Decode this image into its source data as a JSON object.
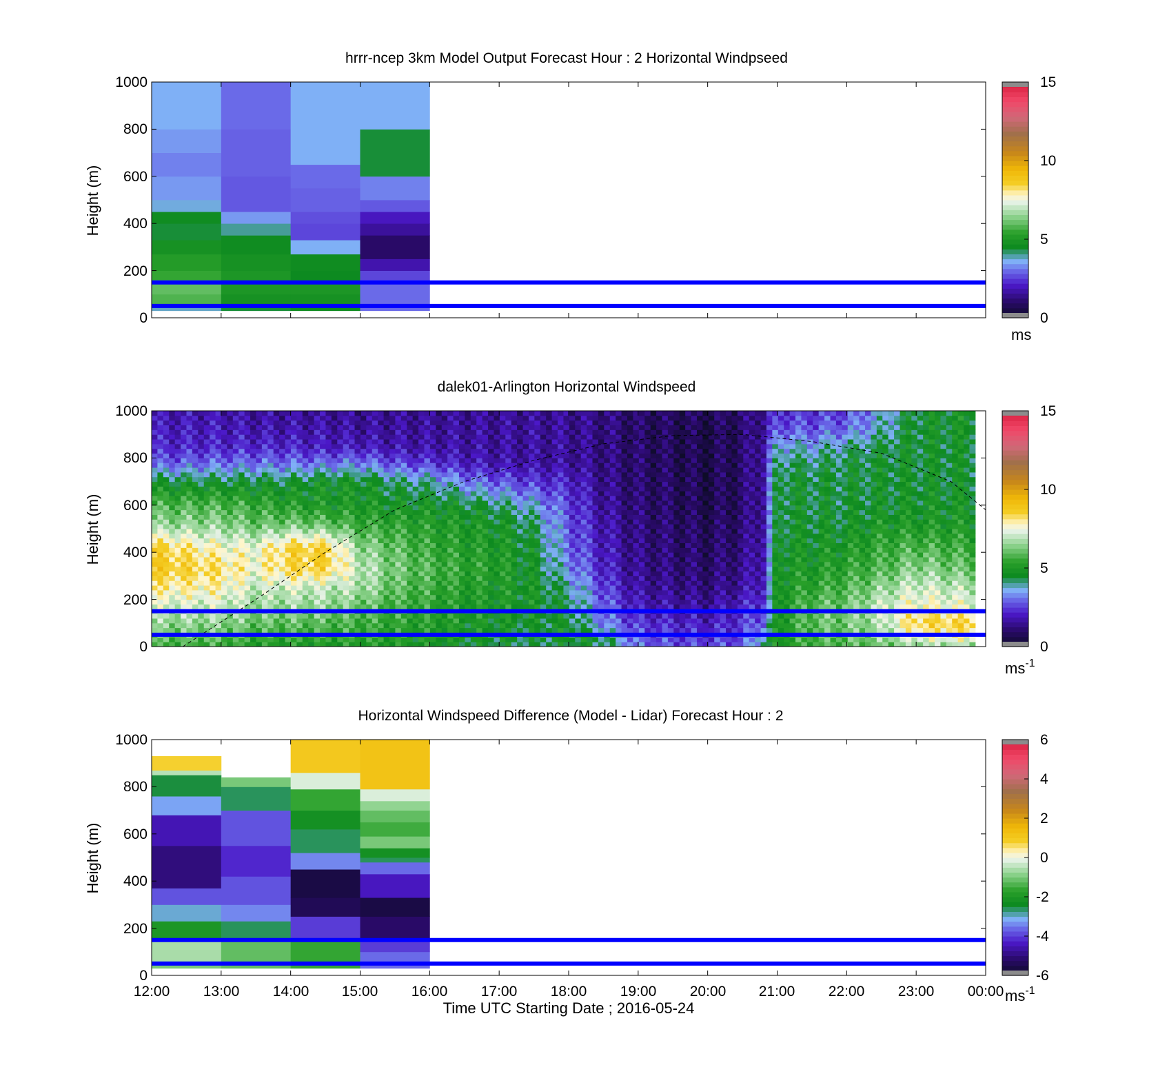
{
  "chart_data": [
    {
      "type": "heatmap",
      "title": "hrrr-ncep 3km Model Output   Forecast Hour : 2 Horizontal Windpseed",
      "ylabel": "Height (m)",
      "xlabel": "",
      "y_ticks": [
        "0",
        "200",
        "400",
        "600",
        "800",
        "1000"
      ],
      "ylim": [
        0,
        1000
      ],
      "x_range_hours": [
        12,
        24
      ],
      "x_ticks": [],
      "colorbar": {
        "ticks": [
          "0",
          "5",
          "10",
          "15"
        ],
        "range": [
          0,
          15
        ],
        "unit": "ms",
        "unit_sup": ""
      },
      "data_extent_hours": [
        12,
        16
      ],
      "reference_lines_m": [
        50,
        150
      ],
      "reference_line_color": "#0000ff",
      "columns": [
        {
          "t0": 12,
          "t1": 13,
          "bands": [
            [
              30,
              50,
              3.8
            ],
            [
              50,
              100,
              5.8
            ],
            [
              100,
              160,
              6.0
            ],
            [
              160,
              200,
              5.5
            ],
            [
              200,
              270,
              5.2
            ],
            [
              270,
              330,
              4.8
            ],
            [
              330,
              400,
              4.4
            ],
            [
              400,
              450,
              4.6
            ],
            [
              450,
              500,
              3.7
            ],
            [
              500,
              600,
              3.4
            ],
            [
              600,
              700,
              3.2
            ],
            [
              700,
              800,
              3.4
            ],
            [
              800,
              1000,
              3.6
            ]
          ]
        },
        {
          "t0": 13,
          "t1": 14,
          "bands": [
            [
              30,
              50,
              4.4
            ],
            [
              50,
              100,
              4.8
            ],
            [
              100,
              160,
              5.0
            ],
            [
              160,
              200,
              5.0
            ],
            [
              200,
              270,
              4.8
            ],
            [
              270,
              350,
              4.6
            ],
            [
              350,
              400,
              4.0
            ],
            [
              400,
              450,
              3.4
            ],
            [
              450,
              600,
              2.8
            ],
            [
              600,
              800,
              2.9
            ],
            [
              800,
              1000,
              3.0
            ]
          ]
        },
        {
          "t0": 14,
          "t1": 15,
          "bands": [
            [
              30,
              50,
              4.6
            ],
            [
              50,
              100,
              4.8
            ],
            [
              100,
              160,
              5.0
            ],
            [
              160,
              200,
              4.5
            ],
            [
              200,
              270,
              4.6
            ],
            [
              270,
              330,
              3.6
            ],
            [
              330,
              400,
              2.6
            ],
            [
              400,
              450,
              2.7
            ],
            [
              450,
              550,
              2.9
            ],
            [
              550,
              650,
              3.0
            ],
            [
              650,
              1000,
              3.6
            ]
          ]
        },
        {
          "t0": 15,
          "t1": 16,
          "bands": [
            [
              30,
              160,
              3.0
            ],
            [
              160,
              200,
              2.6
            ],
            [
              200,
              250,
              1.8
            ],
            [
              250,
              350,
              1.0
            ],
            [
              350,
              400,
              1.6
            ],
            [
              400,
              450,
              2.0
            ],
            [
              450,
              500,
              2.8
            ],
            [
              500,
              600,
              3.2
            ],
            [
              600,
              800,
              4.4
            ],
            [
              800,
              1000,
              3.6
            ]
          ]
        }
      ]
    },
    {
      "type": "heatmap",
      "title": "dalek01-Arlington  Horizontal Windspeed",
      "ylabel": "Height (m)",
      "xlabel": "",
      "y_ticks": [
        "0",
        "200",
        "400",
        "600",
        "800",
        "1000"
      ],
      "ylim": [
        0,
        1000
      ],
      "x_range_hours": [
        12,
        24
      ],
      "x_ticks": [],
      "colorbar": {
        "ticks": [
          "0",
          "5",
          "10",
          "15"
        ],
        "range": [
          0,
          15
        ],
        "unit": "ms",
        "unit_sup": "-1"
      },
      "data_extent_hours": [
        12,
        23.85
      ],
      "reference_lines_m": [
        50,
        150
      ],
      "reference_line_color": "#0000ff",
      "time_anchors_hours": [
        12.0,
        13.0,
        13.5,
        14.0,
        14.5,
        15.0,
        15.5,
        16.0,
        16.5,
        17.0,
        17.5,
        18.0,
        18.5,
        19.0,
        19.5,
        20.0,
        20.5,
        20.8,
        21.0,
        21.5,
        22.0,
        22.5,
        23.0,
        23.85
      ],
      "height_anchors_m": [
        0,
        40,
        100,
        160,
        250,
        330,
        420,
        520,
        600,
        700,
        780,
        850,
        920,
        1000
      ],
      "speed_grid": [
        [
          5.5,
          6.0,
          6.5,
          7.0,
          8.0,
          8.8,
          8.6,
          6.5,
          5.8,
          4.5,
          2.8,
          2.2,
          2.0,
          1.8
        ],
        [
          5.5,
          6.0,
          6.5,
          7.0,
          7.8,
          8.2,
          7.6,
          6.5,
          5.8,
          4.5,
          3.0,
          2.2,
          2.0,
          1.8
        ],
        [
          5.0,
          5.5,
          6.0,
          6.5,
          7.0,
          7.6,
          7.5,
          6.0,
          5.5,
          4.5,
          3.0,
          2.2,
          1.8,
          1.6
        ],
        [
          5.0,
          5.5,
          6.0,
          6.5,
          7.2,
          8.4,
          8.5,
          6.2,
          5.2,
          4.5,
          3.0,
          2.2,
          1.8,
          1.6
        ],
        [
          4.8,
          5.5,
          5.8,
          6.5,
          7.0,
          8.5,
          8.6,
          6.0,
          5.0,
          4.8,
          3.0,
          2.0,
          1.8,
          1.5
        ],
        [
          5.0,
          5.5,
          5.6,
          6.0,
          6.8,
          7.0,
          6.5,
          5.5,
          5.0,
          4.8,
          3.2,
          2.0,
          1.6,
          1.5
        ],
        [
          5.0,
          5.2,
          5.4,
          5.6,
          6.0,
          6.2,
          6.0,
          5.4,
          4.8,
          4.2,
          2.6,
          1.8,
          1.6,
          1.5
        ],
        [
          4.8,
          5.0,
          5.2,
          5.4,
          5.6,
          5.8,
          5.5,
          5.2,
          4.8,
          4.0,
          2.4,
          1.7,
          1.6,
          1.5
        ],
        [
          4.6,
          4.8,
          5.0,
          5.0,
          5.2,
          5.4,
          5.2,
          5.0,
          4.6,
          3.2,
          2.0,
          1.7,
          1.6,
          1.5
        ],
        [
          4.4,
          4.6,
          4.8,
          5.0,
          5.0,
          5.2,
          5.0,
          4.8,
          4.2,
          2.8,
          1.8,
          1.6,
          1.6,
          1.5
        ],
        [
          4.2,
          4.4,
          4.6,
          4.8,
          4.8,
          4.6,
          4.6,
          4.2,
          3.6,
          2.4,
          1.7,
          1.6,
          1.6,
          1.5
        ],
        [
          4.5,
          4.8,
          4.6,
          4.4,
          4.0,
          3.4,
          3.0,
          2.8,
          2.6,
          2.2,
          1.6,
          1.6,
          1.5,
          1.5
        ],
        [
          4.2,
          4.4,
          3.2,
          3.0,
          2.6,
          2.2,
          2.0,
          1.8,
          1.6,
          1.4,
          1.3,
          1.3,
          1.3,
          1.3
        ],
        [
          3.0,
          2.8,
          2.4,
          2.0,
          1.6,
          1.4,
          1.3,
          1.2,
          1.1,
          1.0,
          1.0,
          1.0,
          0.9,
          1.0
        ],
        [
          2.6,
          2.6,
          2.2,
          1.8,
          1.4,
          1.2,
          1.1,
          1.0,
          0.9,
          0.9,
          0.8,
          0.8,
          0.8,
          0.9
        ],
        [
          2.6,
          2.4,
          2.0,
          1.6,
          1.2,
          1.0,
          0.9,
          0.8,
          0.6,
          0.6,
          0.6,
          0.6,
          0.6,
          0.8
        ],
        [
          2.8,
          2.6,
          2.4,
          2.2,
          1.6,
          1.4,
          1.2,
          1.1,
          1.0,
          1.0,
          1.0,
          1.0,
          1.0,
          1.1
        ],
        [
          4.2,
          4.0,
          3.0,
          2.6,
          2.2,
          2.0,
          2.0,
          1.8,
          1.8,
          1.8,
          1.8,
          1.8,
          1.6,
          1.6
        ],
        [
          5.0,
          5.0,
          5.0,
          5.0,
          5.0,
          5.0,
          4.8,
          4.6,
          4.6,
          4.6,
          4.2,
          3.8,
          2.8,
          2.4
        ],
        [
          5.6,
          5.8,
          6.0,
          6.0,
          5.4,
          5.0,
          4.8,
          4.6,
          4.5,
          4.5,
          4.2,
          3.6,
          2.8,
          2.4
        ],
        [
          5.8,
          6.0,
          6.2,
          6.2,
          5.8,
          5.4,
          5.0,
          4.6,
          4.5,
          4.5,
          4.4,
          4.0,
          3.0,
          2.6
        ],
        [
          6.0,
          6.5,
          6.8,
          7.2,
          6.5,
          5.8,
          5.5,
          5.0,
          4.6,
          4.6,
          4.6,
          4.4,
          3.8,
          3.6
        ],
        [
          6.5,
          7.5,
          8.5,
          7.8,
          7.2,
          6.5,
          5.8,
          5.0,
          4.8,
          4.6,
          4.6,
          4.6,
          4.6,
          4.6
        ],
        [
          6.5,
          7.8,
          8.6,
          7.5,
          6.8,
          6.0,
          5.5,
          5.0,
          4.8,
          4.6,
          4.6,
          4.6,
          4.8,
          4.8
        ]
      ],
      "curve": {
        "style": "dashed",
        "color": "#000000",
        "points_hours_m": [
          [
            12.45,
            0
          ],
          [
            13.5,
            200
          ],
          [
            14.5,
            400
          ],
          [
            15.5,
            580
          ],
          [
            16.5,
            700
          ],
          [
            17.5,
            790
          ],
          [
            18.5,
            860
          ],
          [
            19.5,
            895
          ],
          [
            20.5,
            900
          ],
          [
            21.5,
            870
          ],
          [
            22.5,
            820
          ],
          [
            23.5,
            700
          ],
          [
            24,
            580
          ]
        ]
      }
    },
    {
      "type": "heatmap",
      "title": "Horizontal Windspeed Difference (Model - Lidar) Forecast Hour : 2",
      "ylabel": "Height (m)",
      "xlabel": "Time UTC  Starting Date ; 2016-05-24",
      "y_ticks": [
        "0",
        "200",
        "400",
        "600",
        "800",
        "1000"
      ],
      "ylim": [
        0,
        1000
      ],
      "x_range_hours": [
        12,
        24
      ],
      "x_ticks": [
        "12:00",
        "13:00",
        "14:00",
        "15:00",
        "16:00",
        "17:00",
        "18:00",
        "19:00",
        "20:00",
        "21:00",
        "22:00",
        "23:00",
        "00:00"
      ],
      "colorbar": {
        "ticks": [
          "-6",
          "-4",
          "-2",
          "0",
          "2",
          "4",
          "6"
        ],
        "range": [
          -6,
          6
        ],
        "unit": "ms",
        "unit_sup": "-1"
      },
      "data_extent_hours": [
        12,
        16
      ],
      "reference_lines_m": [
        50,
        150
      ],
      "reference_line_color": "#0000ff",
      "columns": [
        {
          "t0": 12,
          "t1": 13,
          "bands": [
            [
              30,
              60,
              -1.0
            ],
            [
              60,
              150,
              -0.6
            ],
            [
              150,
              230,
              -2.0
            ],
            [
              230,
              300,
              -3.0
            ],
            [
              300,
              370,
              -3.8
            ],
            [
              370,
              550,
              -5.0
            ],
            [
              550,
              680,
              -4.5
            ],
            [
              680,
              760,
              -3.2
            ],
            [
              760,
              850,
              -2.5
            ],
            [
              850,
              870,
              -0.5
            ],
            [
              870,
              930,
              0.8
            ]
          ]
        },
        {
          "t0": 13,
          "t1": 14,
          "bands": [
            [
              30,
              150,
              -1.2
            ],
            [
              150,
              230,
              -2.6
            ],
            [
              230,
              300,
              -3.4
            ],
            [
              300,
              420,
              -3.8
            ],
            [
              420,
              550,
              -4.2
            ],
            [
              550,
              700,
              -3.8
            ],
            [
              700,
              800,
              -2.6
            ],
            [
              800,
              840,
              -1.0
            ]
          ]
        },
        {
          "t0": 14,
          "t1": 15,
          "bands": [
            [
              30,
              150,
              -1.6
            ],
            [
              150,
              250,
              -4.0
            ],
            [
              250,
              330,
              -5.4
            ],
            [
              330,
              450,
              -5.6
            ],
            [
              450,
              520,
              -3.4
            ],
            [
              520,
              620,
              -2.6
            ],
            [
              620,
              700,
              -2.2
            ],
            [
              700,
              790,
              -1.6
            ],
            [
              790,
              860,
              -0.2
            ],
            [
              860,
              1000,
              1.0
            ]
          ]
        },
        {
          "t0": 15,
          "t1": 16,
          "bands": [
            [
              30,
              100,
              -3.6
            ],
            [
              100,
              150,
              -4.0
            ],
            [
              150,
              250,
              -5.2
            ],
            [
              250,
              330,
              -5.6
            ],
            [
              330,
              430,
              -4.4
            ],
            [
              430,
              480,
              -3.6
            ],
            [
              480,
              500,
              -2.6
            ],
            [
              500,
              540,
              -2.2
            ],
            [
              540,
              590,
              -1.0
            ],
            [
              590,
              650,
              -1.5
            ],
            [
              650,
              700,
              -1.2
            ],
            [
              700,
              740,
              -0.8
            ],
            [
              740,
              790,
              -0.2
            ],
            [
              790,
              1000,
              1.2
            ]
          ]
        }
      ]
    }
  ]
}
